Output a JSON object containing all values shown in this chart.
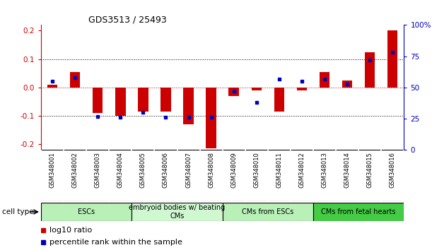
{
  "title": "GDS3513 / 25493",
  "samples": [
    "GSM348001",
    "GSM348002",
    "GSM348003",
    "GSM348004",
    "GSM348005",
    "GSM348006",
    "GSM348007",
    "GSM348008",
    "GSM348009",
    "GSM348010",
    "GSM348011",
    "GSM348012",
    "GSM348013",
    "GSM348014",
    "GSM348015",
    "GSM348016"
  ],
  "log10_ratio": [
    0.01,
    0.055,
    -0.09,
    -0.1,
    -0.085,
    -0.085,
    -0.13,
    -0.215,
    -0.03,
    -0.01,
    -0.085,
    -0.01,
    0.055,
    0.025,
    0.125,
    0.2
  ],
  "percentile_rank": [
    55,
    58,
    27,
    26,
    30,
    26,
    26,
    26,
    47,
    38,
    57,
    55,
    57,
    53,
    72,
    78
  ],
  "ylim_left": [
    -0.22,
    0.22
  ],
  "yticks_left": [
    -0.2,
    -0.1,
    0.0,
    0.1,
    0.2
  ],
  "ytick_labels_right": [
    "0",
    "25",
    "50",
    "75",
    "100%"
  ],
  "yticks_right_vals": [
    0,
    25,
    50,
    75,
    100
  ],
  "cell_type_groups": [
    {
      "label": "ESCs",
      "start": 0,
      "end": 3,
      "color": "#b8f0b8"
    },
    {
      "label": "embryoid bodies w/ beating\nCMs",
      "start": 4,
      "end": 7,
      "color": "#d0f8d0"
    },
    {
      "label": "CMs from ESCs",
      "start": 8,
      "end": 11,
      "color": "#b8f0b8"
    },
    {
      "label": "CMs from fetal hearts",
      "start": 12,
      "end": 15,
      "color": "#44cc44"
    }
  ],
  "bar_color_red": "#CC0000",
  "bar_color_blue": "#0000BB",
  "bar_width": 0.45,
  "bg_color": "#ffffff",
  "left_axis_color": "#CC0000",
  "right_axis_color": "#0000BB",
  "legend_red_label": "log10 ratio",
  "legend_blue_label": "percentile rank within the sample",
  "sample_box_color": "#c8c8c8",
  "cell_type_label": "cell type"
}
